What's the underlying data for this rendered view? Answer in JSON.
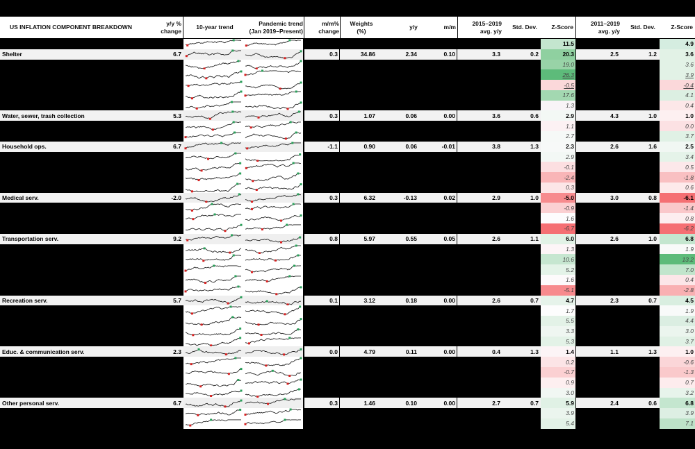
{
  "header": {
    "title": "US INFLATION COMPONENT BREAKDOWN",
    "yy_change": [
      "y/y %",
      "change"
    ],
    "ten_year_trend": "10-year trend",
    "pandemic_trend": [
      "Pandemic trend",
      "(Jan 2019–Present)"
    ],
    "mm_change": [
      "m/m%",
      "change"
    ],
    "weights": [
      "Weights",
      "(%)"
    ],
    "yy": "y/y",
    "mm": "m/m",
    "avg_2015_2019": [
      "2015–2019",
      "avg. y/y"
    ],
    "std_dev_1": "Std. Dev.",
    "zscore_1": "Z-Score",
    "avg_2011_2019": [
      "2011–2019",
      "avg. y/y"
    ],
    "std_dev_2": "Std. Dev.",
    "zscore_2": "Z-Score"
  },
  "colors": {
    "green_strong": "#5dbb7a",
    "green_mid": "#8fd0a0",
    "green_light": "#c4e6cf",
    "green_pale": "#e2f2e6",
    "red_strong": "#f56f73",
    "red_mid": "#f79a9c",
    "red_light": "#f9c7c9",
    "red_pale": "#fce3e4",
    "sparkline_low": "#d62020",
    "sparkline_high": "#2aa15a"
  },
  "rows": [
    {
      "type": "sub",
      "z1": "11.5",
      "z1c": "#c4e6cf",
      "z1b": true,
      "z2": "4.9",
      "z2c": "#d5ede0",
      "z2b": true
    },
    {
      "type": "main",
      "name": "Shelter",
      "yy_change": "6.7",
      "mm_change": "0.3",
      "weights": "34.86",
      "yy": "2.34",
      "mm": "0.10",
      "avg1": "3.3",
      "sd1": "0.2",
      "z1": "20.3",
      "z1c": "#8fd0a0",
      "avg2": "2.5",
      "sd2": "1.2",
      "z2": "3.6",
      "z2c": "#e2f2e6"
    },
    {
      "type": "sub",
      "z1": "19.0",
      "z1c": "#98d3a7",
      "z2": "3.6",
      "z2c": "#e2f2e6"
    },
    {
      "type": "sub",
      "z1": "26.3",
      "z1c": "#5dbb7a",
      "z1u": true,
      "z2": "3.9",
      "z2c": "#e2f2e6",
      "z2u": true
    },
    {
      "type": "sub",
      "z1": "-0.5",
      "z1c": "#fbd8da",
      "z1u": true,
      "z2": "-0.4",
      "z2c": "#fbd8da",
      "z2u": true
    },
    {
      "type": "sub",
      "z1": "17.6",
      "z1c": "#a3d8b1",
      "z2": "4.1",
      "z2c": "#dcefe2"
    },
    {
      "type": "sub",
      "z1": "1.3",
      "z1c": "#f8f4f7",
      "z2": "0.4",
      "z2c": "#fce7e8"
    },
    {
      "type": "main",
      "name": "Water, sewer, trash collection",
      "yy_change": "5.3",
      "mm_change": "0.3",
      "weights": "1.07",
      "yy": "0.06",
      "mm": "0.00",
      "avg1": "3.6",
      "sd1": "0.6",
      "z1": "2.9",
      "z1c": "#f3f8f5",
      "avg2": "4.3",
      "sd2": "1.0",
      "z2": "1.0",
      "z2c": "#fdf0f1"
    },
    {
      "type": "sub",
      "z1": "1.1",
      "z1c": "#fcf1f3",
      "z2": "0.0",
      "z2c": "#fce1e3"
    },
    {
      "type": "sub",
      "z1": "2.7",
      "z1c": "#f6f9f7",
      "z2": "3.7",
      "z2c": "#e0f1e5"
    },
    {
      "type": "main",
      "name": "Household ops.",
      "yy_change": "6.7",
      "mm_change": "-1.1",
      "weights": "0.90",
      "yy": "0.06",
      "mm": "-0.01",
      "avg1": "3.8",
      "sd1": "1.3",
      "z1": "2.3",
      "z1c": "#f7f9f8",
      "avg2": "2.6",
      "sd2": "1.6",
      "z2": "2.5",
      "z2c": "#f1f7f3"
    },
    {
      "type": "sub",
      "z1": "2.9",
      "z1c": "#f3f8f5",
      "z2": "3.4",
      "z2c": "#e5f3e9"
    },
    {
      "type": "sub",
      "z1": "-0.1",
      "z1c": "#fcdfe1",
      "z2": "0.5",
      "z2c": "#fce8ea"
    },
    {
      "type": "sub",
      "z1": "-2.4",
      "z1c": "#f9b5b7",
      "z2": "-1.8",
      "z2c": "#f9c0c2"
    },
    {
      "type": "sub",
      "z1": "0.3",
      "z1c": "#fce6e7",
      "z2": "0.6",
      "z2c": "#fdeaeb"
    },
    {
      "type": "main",
      "name": "Medical serv.",
      "yy_change": "-2.0",
      "mm_change": "0.3",
      "weights": "6.32",
      "yy": "-0.13",
      "mm": "0.02",
      "avg1": "2.9",
      "sd1": "1.0",
      "z1": "-5.0",
      "z1c": "#f78b8e",
      "avg2": "3.0",
      "sd2": "0.8",
      "z2": "-6.1",
      "z2c": "#f56f73"
    },
    {
      "type": "sub",
      "z1": "-0.9",
      "z1c": "#fbd0d2",
      "z2": "-1.4",
      "z2c": "#fac8ca"
    },
    {
      "type": "sub",
      "z1": "1.6",
      "z1c": "#fdfcfd",
      "z2": "0.8",
      "z2c": "#fdeeef"
    },
    {
      "type": "sub",
      "z1": "-6.7",
      "z1c": "#f56f73",
      "z2": "-6.2",
      "z2c": "#f56f73"
    },
    {
      "type": "main",
      "name": "Transportation serv.",
      "yy_change": "9.2",
      "mm_change": "0.8",
      "weights": "5.97",
      "yy": "0.55",
      "mm": "0.05",
      "avg1": "2.6",
      "sd1": "1.1",
      "z1": "6.0",
      "z1c": "#e2f2e6",
      "avg2": "2.6",
      "sd2": "1.0",
      "z2": "6.8",
      "z2c": "#c4e6cf"
    },
    {
      "type": "sub",
      "z1": "1.3",
      "z1c": "#fdf5f7",
      "z2": "1.9",
      "z2c": "#f8faf9"
    },
    {
      "type": "sub",
      "z1": "10.6",
      "z1c": "#c6e6d0",
      "z2": "13.2",
      "z2c": "#5dbb7a"
    },
    {
      "type": "sub",
      "z1": "5.2",
      "z1c": "#e4f3e8",
      "z2": "7.0",
      "z2c": "#c1e5cc"
    },
    {
      "type": "sub",
      "z1": "1.6",
      "z1c": "#fdfafb",
      "z2": "0.4",
      "z2c": "#fce6e8"
    },
    {
      "type": "sub",
      "z1": "-5.1",
      "z1c": "#f78a8d",
      "z2": "-2.8",
      "z2c": "#f9b0b2"
    },
    {
      "type": "main",
      "name": "Recreation serv.",
      "yy_change": "5.7",
      "mm_change": "0.1",
      "weights": "3.12",
      "yy": "0.18",
      "mm": "0.00",
      "avg1": "2.6",
      "sd1": "0.7",
      "z1": "4.7",
      "z1c": "#e6f3ea",
      "avg2": "2.3",
      "sd2": "0.7",
      "z2": "4.5",
      "z2c": "#d9eee0"
    },
    {
      "type": "sub",
      "z1": "1.7",
      "z1c": "#fdfdfd",
      "z2": "1.9",
      "z2c": "#f8faf9"
    },
    {
      "type": "sub",
      "z1": "5.5",
      "z1c": "#e3f2e7",
      "z2": "4.4",
      "z2c": "#dbeee2"
    },
    {
      "type": "sub",
      "z1": "3.3",
      "z1c": "#eff6f1",
      "z2": "3.0",
      "z2c": "#ebf5ee"
    },
    {
      "type": "sub",
      "z1": "5.3",
      "z1c": "#e3f2e7",
      "z2": "3.7",
      "z2c": "#e0f1e5"
    },
    {
      "type": "main",
      "name": "Educ. & communication serv.",
      "yy_change": "2.3",
      "mm_change": "0.0",
      "weights": "4.79",
      "yy": "0.11",
      "mm": "0.00",
      "avg1": "0.4",
      "sd1": "1.3",
      "z1": "1.4",
      "z1c": "#fcf4f6",
      "avg2": "1.1",
      "sd2": "1.3",
      "z2": "1.0",
      "z2c": "#fdf0f1"
    },
    {
      "type": "sub",
      "z1": "0.2",
      "z1c": "#fce4e6",
      "z2": "-0.6",
      "z2c": "#fbd6d8"
    },
    {
      "type": "sub",
      "z1": "-0.7",
      "z1c": "#fbd0d2",
      "z2": "-1.3",
      "z2c": "#fac9cb"
    },
    {
      "type": "sub",
      "z1": "0.9",
      "z1c": "#fdeff0",
      "z2": "0.7",
      "z2c": "#fdeced"
    },
    {
      "type": "sub",
      "z1": "3.0",
      "z1c": "#f1f7f3",
      "z2": "3.2",
      "z2c": "#e7f4eb"
    },
    {
      "type": "main",
      "name": "Other personal serv.",
      "yy_change": "6.7",
      "mm_change": "0.3",
      "weights": "1.46",
      "yy": "0.10",
      "mm": "0.00",
      "avg1": "2.7",
      "sd1": "0.7",
      "z1": "5.9",
      "z1c": "#e0f1e5",
      "avg2": "2.4",
      "sd2": "0.6",
      "z2": "6.8",
      "z2c": "#c4e6cf"
    },
    {
      "type": "sub",
      "z1": "3.9",
      "z1c": "#ebf5ee",
      "z2": "3.9",
      "z2c": "#ddefe3"
    },
    {
      "type": "sub",
      "z1": "5.4",
      "z1c": "#e3f2e7",
      "z2": "7.1",
      "z2c": "#bde3c8"
    }
  ]
}
